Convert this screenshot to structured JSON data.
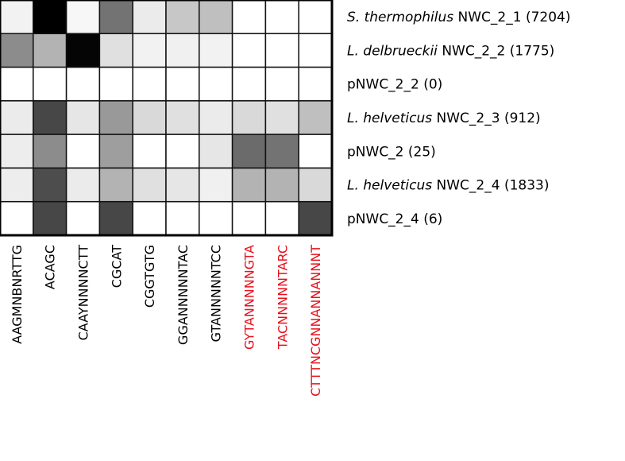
{
  "chart_data": {
    "type": "heatmap",
    "rows": [
      {
        "species": "S. thermophilus",
        "name": "NWC_2_1",
        "count": "(7204)"
      },
      {
        "species": "L. delbrueckii",
        "name": "NWC_2_2",
        "count": "(1775)"
      },
      {
        "species": "",
        "name": "pNWC_2_2",
        "count": "(0)"
      },
      {
        "species": "L. helveticus",
        "name": "NWC_2_3",
        "count": "(912)"
      },
      {
        "species": "",
        "name": "pNWC_2",
        "count": "(25)"
      },
      {
        "species": "L. helveticus",
        "name": "NWC_2_4",
        "count": "(1833)"
      },
      {
        "species": "",
        "name": "pNWC_2_4",
        "count": "(6)"
      }
    ],
    "columns": [
      {
        "label": "AAGMNBNRTTG",
        "color": "#000000"
      },
      {
        "label": "ACAGC",
        "color": "#000000"
      },
      {
        "label": "CAAYNNNNCTT",
        "color": "#000000"
      },
      {
        "label": "CGCAT",
        "color": "#000000"
      },
      {
        "label": "CGGTGTG",
        "color": "#000000"
      },
      {
        "label": "GGANNNNNTAC",
        "color": "#000000"
      },
      {
        "label": "GTANNNNNTCC",
        "color": "#000000"
      },
      {
        "label": "GYTANNNNNGTA",
        "color": "#e8101c"
      },
      {
        "label": "TACNNNNNTARC",
        "color": "#e8101c"
      },
      {
        "label": "CTTTNCGNNANNANNNT",
        "color": "#e8101c"
      }
    ],
    "values": [
      [
        0.05,
        1.0,
        0.03,
        0.55,
        0.08,
        0.22,
        0.25,
        0.0,
        0.0,
        0.0
      ],
      [
        0.45,
        0.3,
        0.98,
        0.12,
        0.05,
        0.06,
        0.05,
        0.0,
        0.0,
        0.0
      ],
      [
        0.0,
        0.0,
        0.0,
        0.0,
        0.0,
        0.0,
        0.0,
        0.0,
        0.0,
        0.0
      ],
      [
        0.08,
        0.72,
        0.1,
        0.4,
        0.15,
        0.12,
        0.08,
        0.15,
        0.12,
        0.25
      ],
      [
        0.07,
        0.45,
        0.0,
        0.38,
        0.0,
        0.0,
        0.1,
        0.58,
        0.55,
        0.0
      ],
      [
        0.07,
        0.7,
        0.08,
        0.3,
        0.12,
        0.1,
        0.06,
        0.3,
        0.3,
        0.15
      ],
      [
        0.0,
        0.72,
        0.0,
        0.72,
        0.0,
        0.0,
        0.0,
        0.0,
        0.0,
        0.72
      ]
    ],
    "colors": {
      "low": "#ffffff",
      "high": "#000000",
      "highlight_label": "#e8101c"
    }
  }
}
